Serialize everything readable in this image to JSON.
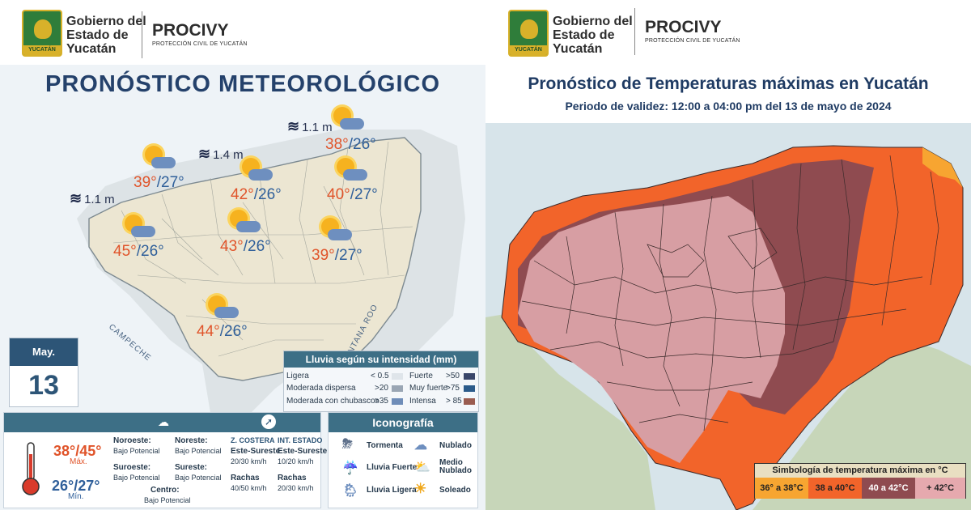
{
  "left": {
    "header": {
      "gov": "Gobierno del Estado de Yucatán",
      "crest_text": "YUCATÁN",
      "brand": "PROCIVY",
      "brand_sub": "PROTECCIÓN CIVIL DE YUCATÁN"
    },
    "title": "PRONÓSTICO METEOROLÓGICO",
    "waves": [
      "1.1 m",
      "1.4 m",
      "1.1 m"
    ],
    "forecasts": [
      {
        "hi": "38°",
        "lo": "/26°"
      },
      {
        "hi": "39°",
        "lo": "/27°"
      },
      {
        "hi": "42°",
        "lo": "/26°"
      },
      {
        "hi": "40°",
        "lo": "/27°"
      },
      {
        "hi": "45°",
        "lo": "/26°"
      },
      {
        "hi": "43°",
        "lo": "/26°"
      },
      {
        "hi": "39°",
        "lo": "/27°"
      },
      {
        "hi": "44°",
        "lo": "/26°"
      }
    ],
    "state_labels": {
      "campeche": "CAMPECHE",
      "qroo": "QUINTANA ROO"
    },
    "date": {
      "month": "May.",
      "day": "13"
    },
    "rain_legend": {
      "title": "Lluvia según su intensidad (mm)",
      "items": [
        {
          "label": "Ligera",
          "value": "< 0.5",
          "color": "#dfe5ea"
        },
        {
          "label": "Moderada dispersa",
          "value": ">20",
          "color": "#9aa6b4"
        },
        {
          "label": "Moderada con chubascos",
          "value": ">35",
          "color": "#6f8db8"
        },
        {
          "label": "Fuerte",
          "value": ">50",
          "color": "#39466a"
        },
        {
          "label": "Muy fuerte",
          "value": ">75",
          "color": "#2b5b8a"
        },
        {
          "label": "Intensa",
          "value": "> 85",
          "color": "#9a5c4f"
        }
      ]
    },
    "summary": {
      "max": "38°/45°",
      "max_label": "Máx.",
      "min": "26°/27°",
      "min_label": "Mín.",
      "zones": [
        {
          "name": "Noroeste:",
          "value": "Bajo Potencial"
        },
        {
          "name": "Noreste:",
          "value": "Bajo Potencial"
        },
        {
          "name": "Suroeste:",
          "value": "Bajo Potencial"
        },
        {
          "name": "Sureste:",
          "value": "Bajo Potencial"
        },
        {
          "name": "Centro:",
          "value": "Bajo Potencial"
        }
      ],
      "wind": {
        "costera_title": "Z. COSTERA",
        "costera_dir": "Este-Sureste",
        "costera_speed": "20/30 km/h",
        "interior_title": "INT. ESTADO",
        "interior_dir": "Este-Sureste",
        "interior_speed": "10/20 km/h",
        "rachas_label": "Rachas",
        "rachas_costera": "40/50 km/h",
        "rachas_interior": "20/30 km/h"
      }
    },
    "iconografia": {
      "title": "Iconografía",
      "items": [
        "Tormenta",
        "Nublado",
        "Lluvia Fuerte",
        "Medio Nublado",
        "Lluvia Ligera",
        "Soleado"
      ]
    }
  },
  "right": {
    "header": {
      "gov": "Gobierno del Estado de Yucatán",
      "crest_text": "YUCATÁN",
      "brand": "PROCIVY",
      "brand_sub": "PROTECCIÓN CIVIL DE YUCATÁN"
    },
    "title": "Pronóstico de Temperaturas máximas en Yucatán",
    "subtitle": "Periodo de validez: 12:00 a 04:00 pm del 13 de mayo de 2024",
    "legend": {
      "title": "Simbología de temperatura máxima en °C",
      "items": [
        {
          "label": "36° a 38°C",
          "color": "#f7a531"
        },
        {
          "label": "38 a 40°C",
          "color": "#f2642a"
        },
        {
          "label": "40 a 42°C",
          "color": "#8f4b50"
        },
        {
          "label": "+ 42°C",
          "color": "#e6a9ae"
        }
      ]
    },
    "colors": {
      "ocean": "#d7e4ea",
      "land_outside": "#c7d6b9",
      "zone_36_38": "#f7a531",
      "zone_38_40": "#f2642a",
      "zone_40_42": "#8f4b50",
      "zone_42": "#d79ea3"
    }
  }
}
